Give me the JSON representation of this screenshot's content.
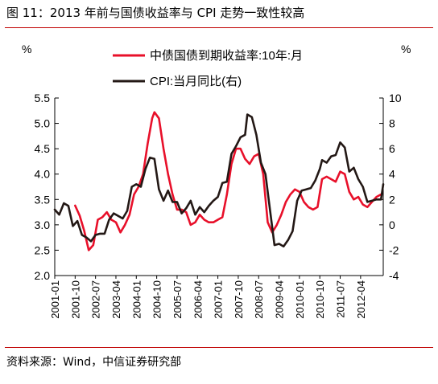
{
  "title": "图 11：2013 年前与国债收益率与 CPI 走势一致性较高",
  "source": "资料来源：Wind，中信证券研究部",
  "colors": {
    "cgb": "#e8102a",
    "cpi": "#231815",
    "rule": "#c00000"
  },
  "chart_data": {
    "type": "line",
    "left_unit": "%",
    "right_unit": "%",
    "left_ylim": [
      2.0,
      5.5
    ],
    "left_ticks": [
      "2.0",
      "2.5",
      "3.0",
      "3.5",
      "4.0",
      "4.5",
      "5.0",
      "5.5"
    ],
    "right_ylim": [
      -4,
      10
    ],
    "right_ticks": [
      "-4",
      "-2",
      "0",
      "2",
      "4",
      "6",
      "8",
      "10"
    ],
    "x_ticks": [
      "2001-01",
      "2001-10",
      "2002-07",
      "2003-04",
      "2004-01",
      "2004-10",
      "2005-07",
      "2006-04",
      "2007-01",
      "2007-10",
      "2008-07",
      "2009-04",
      "2010-01",
      "2010-10",
      "2011-07",
      "2012-04"
    ],
    "x_range": [
      "2001-01",
      "2013-02"
    ],
    "grid": false,
    "legend_position": "top",
    "series": [
      {
        "name": "中债国债到期收益率:10年:月",
        "axis": "left",
        "color": "#e8102a",
        "points": [
          [
            "2001-10",
            3.38
          ],
          [
            "2001-12",
            3.18
          ],
          [
            "2002-02",
            2.88
          ],
          [
            "2002-04",
            2.5
          ],
          [
            "2002-06",
            2.6
          ],
          [
            "2002-08",
            3.1
          ],
          [
            "2002-10",
            3.15
          ],
          [
            "2002-12",
            3.25
          ],
          [
            "2003-02",
            3.1
          ],
          [
            "2003-04",
            3.05
          ],
          [
            "2003-06",
            2.85
          ],
          [
            "2003-08",
            3.0
          ],
          [
            "2003-10",
            3.2
          ],
          [
            "2003-12",
            3.6
          ],
          [
            "2004-02",
            3.75
          ],
          [
            "2004-04",
            4.0
          ],
          [
            "2004-06",
            4.6
          ],
          [
            "2004-08",
            5.1
          ],
          [
            "2004-09",
            5.22
          ],
          [
            "2004-11",
            5.1
          ],
          [
            "2005-01",
            4.5
          ],
          [
            "2005-03",
            4.0
          ],
          [
            "2005-05",
            3.6
          ],
          [
            "2005-07",
            3.3
          ],
          [
            "2005-09",
            3.3
          ],
          [
            "2005-11",
            3.25
          ],
          [
            "2006-01",
            3.0
          ],
          [
            "2006-03",
            3.05
          ],
          [
            "2006-05",
            3.2
          ],
          [
            "2006-07",
            3.1
          ],
          [
            "2006-09",
            3.05
          ],
          [
            "2006-11",
            3.05
          ],
          [
            "2007-01",
            3.1
          ],
          [
            "2007-03",
            3.15
          ],
          [
            "2007-05",
            3.6
          ],
          [
            "2007-07",
            4.2
          ],
          [
            "2007-09",
            4.5
          ],
          [
            "2007-11",
            4.5
          ],
          [
            "2008-01",
            4.3
          ],
          [
            "2008-03",
            4.2
          ],
          [
            "2008-05",
            4.35
          ],
          [
            "2008-07",
            4.4
          ],
          [
            "2008-09",
            4.0
          ],
          [
            "2008-11",
            3.05
          ],
          [
            "2009-01",
            2.85
          ],
          [
            "2009-03",
            3.0
          ],
          [
            "2009-05",
            3.2
          ],
          [
            "2009-07",
            3.45
          ],
          [
            "2009-09",
            3.6
          ],
          [
            "2009-11",
            3.7
          ],
          [
            "2010-01",
            3.65
          ],
          [
            "2010-03",
            3.45
          ],
          [
            "2010-05",
            3.35
          ],
          [
            "2010-07",
            3.3
          ],
          [
            "2010-09",
            3.35
          ],
          [
            "2010-11",
            3.9
          ],
          [
            "2011-01",
            3.95
          ],
          [
            "2011-03",
            3.9
          ],
          [
            "2011-05",
            3.85
          ],
          [
            "2011-07",
            4.05
          ],
          [
            "2011-09",
            4.0
          ],
          [
            "2011-11",
            3.65
          ],
          [
            "2012-01",
            3.5
          ],
          [
            "2012-03",
            3.55
          ],
          [
            "2012-05",
            3.4
          ],
          [
            "2012-07",
            3.35
          ],
          [
            "2012-09",
            3.45
          ],
          [
            "2012-11",
            3.55
          ],
          [
            "2013-01",
            3.6
          ]
        ]
      },
      {
        "name": "CPI:当月同比(右)",
        "axis": "right",
        "color": "#231815",
        "points": [
          [
            "2001-01",
            1.2
          ],
          [
            "2001-03",
            0.8
          ],
          [
            "2001-05",
            1.7
          ],
          [
            "2001-07",
            1.5
          ],
          [
            "2001-09",
            -0.1
          ],
          [
            "2001-11",
            0.3
          ],
          [
            "2002-01",
            -0.8
          ],
          [
            "2002-03",
            -1.0
          ],
          [
            "2002-05",
            -1.3
          ],
          [
            "2002-07",
            -0.8
          ],
          [
            "2002-09",
            -0.7
          ],
          [
            "2002-11",
            -0.7
          ],
          [
            "2003-01",
            0.4
          ],
          [
            "2003-03",
            0.9
          ],
          [
            "2003-05",
            0.7
          ],
          [
            "2003-07",
            0.5
          ],
          [
            "2003-09",
            1.1
          ],
          [
            "2003-11",
            3.0
          ],
          [
            "2004-01",
            3.2
          ],
          [
            "2004-03",
            3.0
          ],
          [
            "2004-05",
            4.4
          ],
          [
            "2004-07",
            5.3
          ],
          [
            "2004-09",
            5.2
          ],
          [
            "2004-11",
            2.8
          ],
          [
            "2005-01",
            1.9
          ],
          [
            "2005-03",
            2.7
          ],
          [
            "2005-05",
            1.8
          ],
          [
            "2005-07",
            1.8
          ],
          [
            "2005-09",
            0.9
          ],
          [
            "2005-11",
            1.3
          ],
          [
            "2006-01",
            1.9
          ],
          [
            "2006-03",
            0.8
          ],
          [
            "2006-05",
            1.4
          ],
          [
            "2006-07",
            1.0
          ],
          [
            "2006-09",
            1.5
          ],
          [
            "2006-11",
            1.9
          ],
          [
            "2007-01",
            2.2
          ],
          [
            "2007-03",
            3.3
          ],
          [
            "2007-05",
            3.4
          ],
          [
            "2007-07",
            5.6
          ],
          [
            "2007-09",
            6.2
          ],
          [
            "2007-11",
            6.9
          ],
          [
            "2008-01",
            7.1
          ],
          [
            "2008-02",
            8.7
          ],
          [
            "2008-04",
            8.5
          ],
          [
            "2008-06",
            7.1
          ],
          [
            "2008-08",
            4.9
          ],
          [
            "2008-10",
            4.0
          ],
          [
            "2008-12",
            1.2
          ],
          [
            "2009-02",
            -1.6
          ],
          [
            "2009-04",
            -1.5
          ],
          [
            "2009-06",
            -1.7
          ],
          [
            "2009-08",
            -1.2
          ],
          [
            "2009-10",
            -0.5
          ],
          [
            "2009-12",
            1.9
          ],
          [
            "2010-02",
            2.7
          ],
          [
            "2010-04",
            2.8
          ],
          [
            "2010-06",
            2.9
          ],
          [
            "2010-08",
            3.5
          ],
          [
            "2010-10",
            4.4
          ],
          [
            "2010-11",
            5.1
          ],
          [
            "2011-01",
            4.9
          ],
          [
            "2011-03",
            5.4
          ],
          [
            "2011-05",
            5.5
          ],
          [
            "2011-07",
            6.5
          ],
          [
            "2011-09",
            6.1
          ],
          [
            "2011-11",
            4.2
          ],
          [
            "2012-01",
            4.5
          ],
          [
            "2012-03",
            3.6
          ],
          [
            "2012-05",
            3.0
          ],
          [
            "2012-07",
            1.8
          ],
          [
            "2012-09",
            1.9
          ],
          [
            "2012-11",
            2.0
          ],
          [
            "2013-01",
            2.0
          ],
          [
            "2013-02",
            3.2
          ]
        ]
      }
    ]
  }
}
